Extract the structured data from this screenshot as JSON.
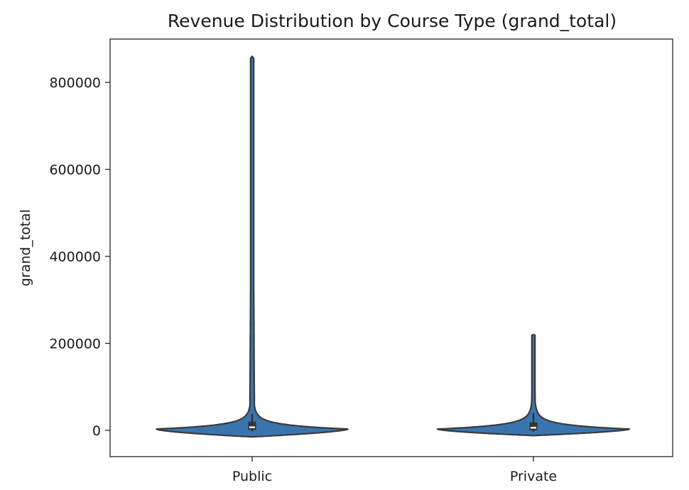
{
  "chart_data": {
    "type": "violin",
    "title": "Revenue Distribution by Course Type (grand_total)",
    "xlabel": "",
    "ylabel": "grand_total",
    "categories": [
      "Public",
      "Private"
    ],
    "ylim": [
      -60000,
      900000
    ],
    "yticks": [
      0,
      200000,
      400000,
      600000,
      800000
    ],
    "ytick_labels": [
      "0",
      "200000",
      "400000",
      "600000",
      "800000"
    ],
    "grid": false,
    "violin_color": "#3b75af",
    "outline_color": "#3a3a3a",
    "violins": [
      {
        "category": "Public",
        "min": -15000,
        "max": 860000,
        "q1": 1000,
        "median": 7000,
        "q3": 20000,
        "whisker_low": -2000,
        "whisker_high": 38000
      },
      {
        "category": "Private",
        "min": -12000,
        "max": 220000,
        "q1": 0,
        "median": 6000,
        "q3": 18000,
        "whisker_low": -3000,
        "whisker_high": 40000
      }
    ]
  }
}
